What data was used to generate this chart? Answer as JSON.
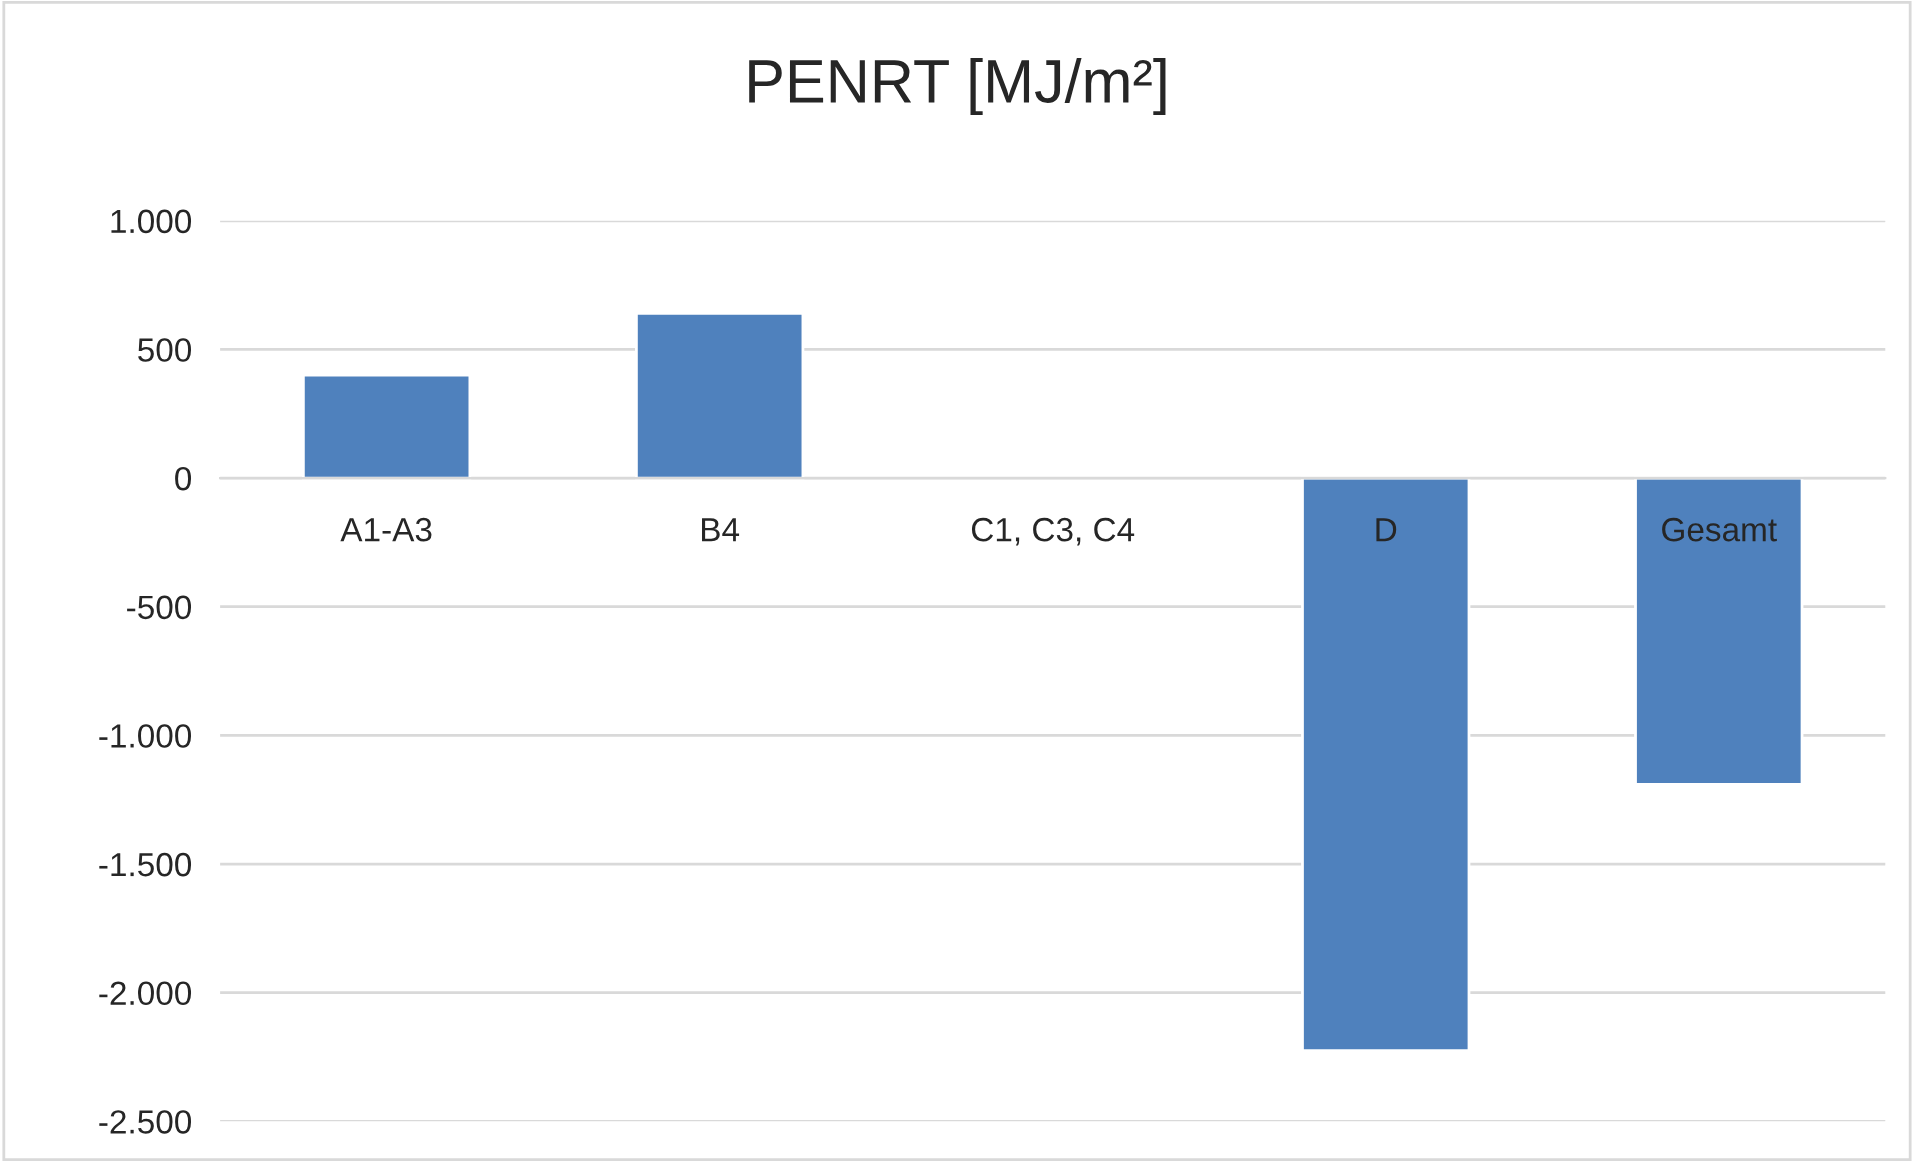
{
  "chart_data": {
    "type": "bar",
    "title": "PENRT [MJ/m²]",
    "categories": [
      "A1-A3",
      "B4",
      "C1, C3, C4",
      "D",
      "Gesamt"
    ],
    "values": [
      400,
      640,
      null,
      -2225,
      -1190
    ],
    "color": "#4f81bd",
    "ylim": [
      -2500,
      1000
    ],
    "yticks": [
      {
        "value": 1000,
        "label": "1.000"
      },
      {
        "value": 500,
        "label": "500"
      },
      {
        "value": 0,
        "label": "0"
      },
      {
        "value": -500,
        "label": "-500"
      },
      {
        "value": -1000,
        "label": "-1.000"
      },
      {
        "value": -1500,
        "label": "-1.500"
      },
      {
        "value": -2000,
        "label": "-2.000"
      },
      {
        "value": -2500,
        "label": "-2.500"
      }
    ],
    "grid": "y",
    "legend": false
  }
}
